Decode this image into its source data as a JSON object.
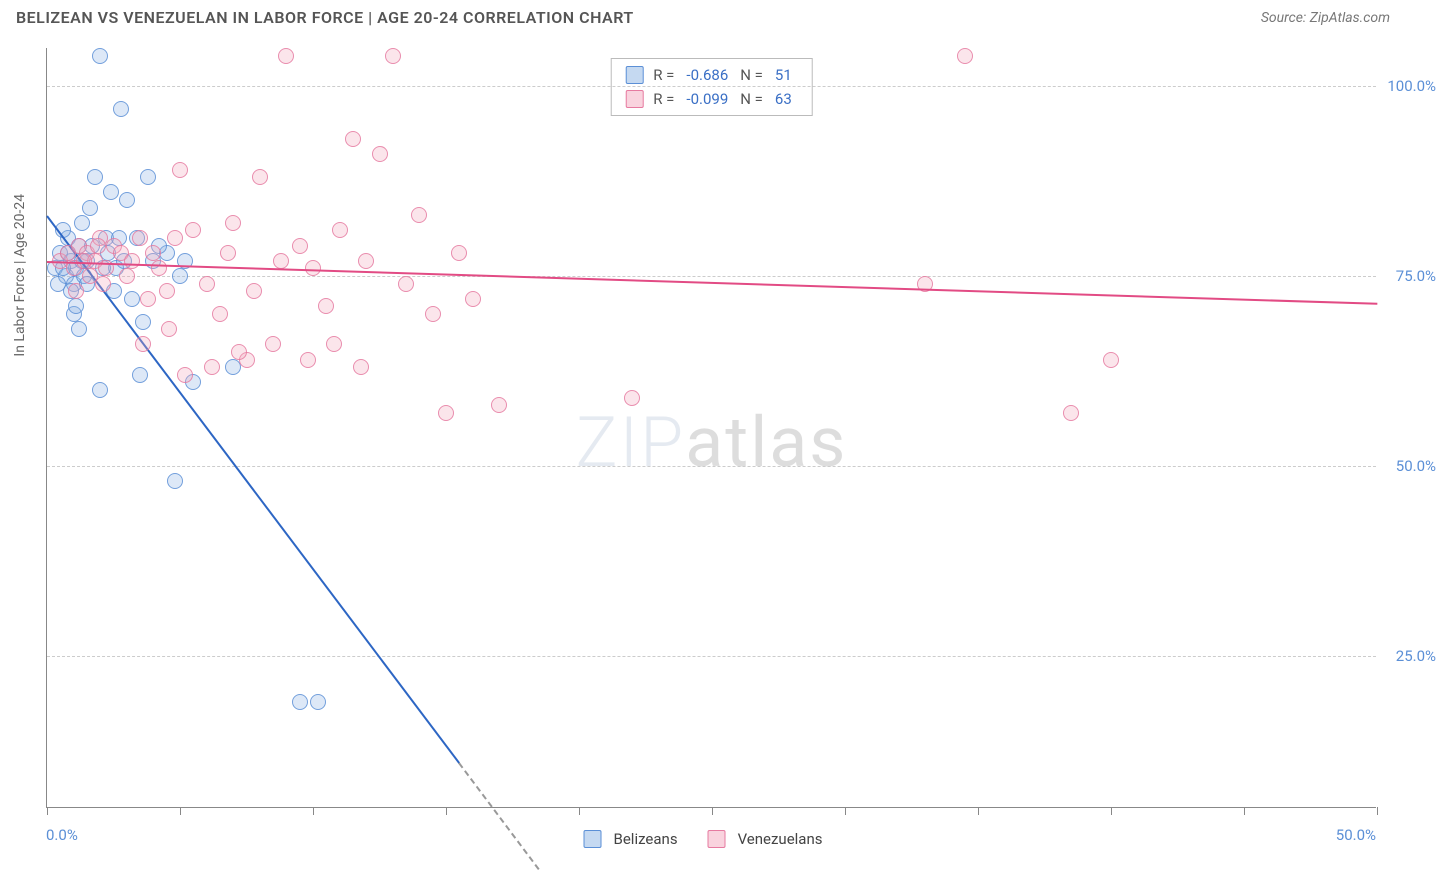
{
  "title": "BELIZEAN VS VENEZUELAN IN LABOR FORCE | AGE 20-24 CORRELATION CHART",
  "source": "Source: ZipAtlas.com",
  "watermark": {
    "part1": "ZIP",
    "part2": "atlas"
  },
  "chart": {
    "type": "scatter",
    "y_axis": {
      "title": "In Labor Force | Age 20-24",
      "min": 5,
      "max": 105,
      "ticks": [
        {
          "value": 25,
          "label": "25.0%"
        },
        {
          "value": 50,
          "label": "50.0%"
        },
        {
          "value": 75,
          "label": "75.0%"
        },
        {
          "value": 100,
          "label": "100.0%"
        }
      ],
      "label_color": "#5b8fd6",
      "label_fontsize": 15
    },
    "x_axis": {
      "min": 0,
      "max": 50,
      "label_left": "0.0%",
      "label_right": "50.0%",
      "ticks": [
        0,
        5,
        10,
        15,
        20,
        25,
        30,
        35,
        40,
        45,
        50
      ],
      "label_color": "#5b8fd6"
    },
    "grid_color": "#cccccc",
    "background_color": "#ffffff",
    "series": [
      {
        "name": "Belizeans",
        "color_fill": "rgba(139,180,228,0.35)",
        "color_stroke": "#5b8fd6",
        "marker_size": 16,
        "correlation_R": "-0.686",
        "N": "51",
        "trend": {
          "x1": 0,
          "y1": 83,
          "x2": 15.5,
          "y2": 11,
          "color": "#2d66c4",
          "width": 2
        },
        "trend_ext": {
          "x1": 15.5,
          "y1": 11,
          "x2": 18.5,
          "y2": -3,
          "dashed": true
        },
        "points": [
          [
            0.3,
            76
          ],
          [
            0.5,
            78
          ],
          [
            0.7,
            75
          ],
          [
            0.8,
            80
          ],
          [
            0.9,
            77
          ],
          [
            1.0,
            74
          ],
          [
            1.1,
            76
          ],
          [
            1.2,
            79
          ],
          [
            1.3,
            82
          ],
          [
            1.4,
            75
          ],
          [
            1.5,
            77
          ],
          [
            1.6,
            84
          ],
          [
            1.8,
            88
          ],
          [
            2.0,
            104
          ],
          [
            2.2,
            80
          ],
          [
            2.4,
            86
          ],
          [
            2.6,
            76
          ],
          [
            2.8,
            97
          ],
          [
            3.0,
            85
          ],
          [
            3.2,
            72
          ],
          [
            3.4,
            80
          ],
          [
            3.6,
            69
          ],
          [
            3.8,
            88
          ],
          [
            4.0,
            77
          ],
          [
            1.0,
            70
          ],
          [
            1.2,
            68
          ],
          [
            3.5,
            62
          ],
          [
            4.5,
            78
          ],
          [
            5.0,
            75
          ],
          [
            7.0,
            63
          ],
          [
            4.8,
            48
          ],
          [
            9.5,
            19
          ],
          [
            10.2,
            19
          ],
          [
            5.5,
            61
          ],
          [
            0.6,
            81
          ],
          [
            0.9,
            73
          ],
          [
            1.1,
            71
          ],
          [
            1.3,
            77
          ],
          [
            1.5,
            74
          ],
          [
            1.7,
            79
          ],
          [
            2.1,
            76
          ],
          [
            2.3,
            78
          ],
          [
            2.5,
            73
          ],
          [
            2.7,
            80
          ],
          [
            2.9,
            77
          ],
          [
            0.4,
            74
          ],
          [
            0.6,
            76
          ],
          [
            0.8,
            78
          ],
          [
            2.0,
            60
          ],
          [
            5.2,
            77
          ],
          [
            4.2,
            79
          ]
        ]
      },
      {
        "name": "Venezuelans",
        "color_fill": "rgba(244,168,190,0.35)",
        "color_stroke": "#e67aa0",
        "marker_size": 16,
        "correlation_R": "-0.099",
        "N": "63",
        "trend": {
          "x1": 0,
          "y1": 77,
          "x2": 50,
          "y2": 71.5,
          "color": "#e24b84",
          "width": 2
        },
        "points": [
          [
            0.5,
            77
          ],
          [
            0.8,
            78
          ],
          [
            1.0,
            76
          ],
          [
            1.2,
            79
          ],
          [
            1.5,
            78
          ],
          [
            1.8,
            77
          ],
          [
            2.0,
            80
          ],
          [
            2.2,
            76
          ],
          [
            2.5,
            79
          ],
          [
            2.8,
            78
          ],
          [
            3.0,
            75
          ],
          [
            3.5,
            80
          ],
          [
            4.0,
            78
          ],
          [
            4.5,
            73
          ],
          [
            5.0,
            89
          ],
          [
            5.5,
            81
          ],
          [
            6.0,
            74
          ],
          [
            6.5,
            70
          ],
          [
            7.0,
            82
          ],
          [
            7.5,
            64
          ],
          [
            8.0,
            88
          ],
          [
            8.5,
            66
          ],
          [
            9.0,
            104
          ],
          [
            9.5,
            79
          ],
          [
            10.0,
            76
          ],
          [
            10.5,
            71
          ],
          [
            11.0,
            81
          ],
          [
            11.5,
            93
          ],
          [
            12.0,
            77
          ],
          [
            12.5,
            91
          ],
          [
            13.0,
            104
          ],
          [
            13.5,
            74
          ],
          [
            14.0,
            83
          ],
          [
            14.5,
            70
          ],
          [
            15.0,
            57
          ],
          [
            15.5,
            78
          ],
          [
            16.0,
            72
          ],
          [
            17.0,
            58
          ],
          [
            22.0,
            59
          ],
          [
            5.2,
            62
          ],
          [
            6.2,
            63
          ],
          [
            7.2,
            65
          ],
          [
            1.1,
            73
          ],
          [
            1.4,
            77
          ],
          [
            1.6,
            75
          ],
          [
            1.9,
            79
          ],
          [
            2.1,
            74
          ],
          [
            3.2,
            77
          ],
          [
            3.8,
            72
          ],
          [
            4.2,
            76
          ],
          [
            4.8,
            80
          ],
          [
            33.0,
            74
          ],
          [
            34.5,
            104
          ],
          [
            38.5,
            57
          ],
          [
            40.0,
            64
          ],
          [
            6.8,
            78
          ],
          [
            7.8,
            73
          ],
          [
            8.8,
            77
          ],
          [
            9.8,
            64
          ],
          [
            10.8,
            66
          ],
          [
            11.8,
            63
          ],
          [
            3.6,
            66
          ],
          [
            4.6,
            68
          ]
        ]
      }
    ]
  },
  "legend_top": {
    "rows": [
      {
        "swatch": "blue",
        "r_label": "R =",
        "r_value": "-0.686",
        "n_label": "N =",
        "n_value": "51"
      },
      {
        "swatch": "pink",
        "r_label": "R =",
        "r_value": "-0.099",
        "n_label": "N =",
        "n_value": "63"
      }
    ]
  },
  "legend_bottom": {
    "items": [
      {
        "swatch": "blue",
        "label": "Belizeans"
      },
      {
        "swatch": "pink",
        "label": "Venezuelans"
      }
    ]
  }
}
